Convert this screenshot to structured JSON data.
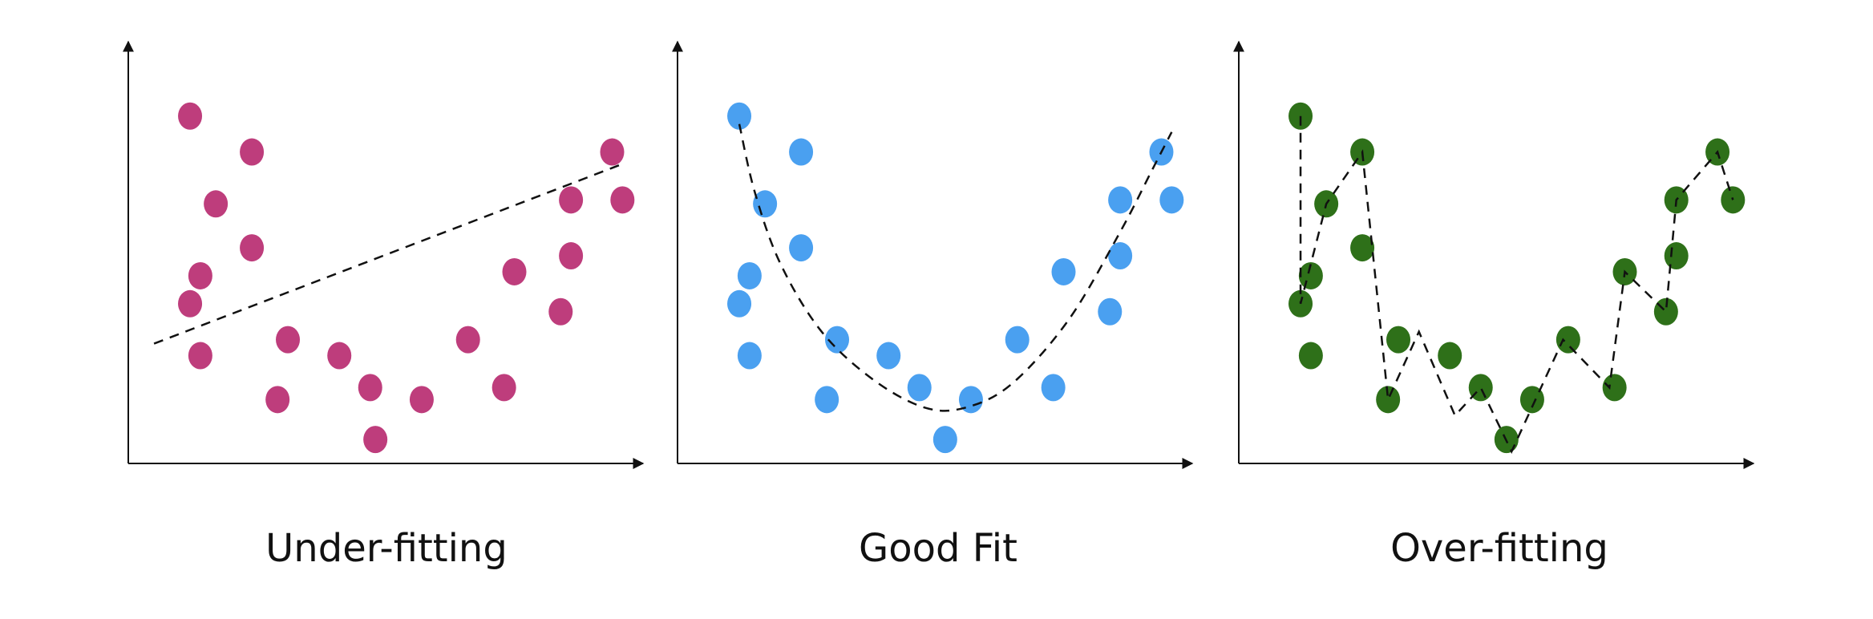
{
  "chart_data": [
    {
      "type": "scatter",
      "title": "Under-fitting",
      "point_color": "#be3d7c",
      "fit_line": {
        "style": "dashed",
        "kind": "linear",
        "color": "#111111"
      },
      "xlim": [
        0,
        10
      ],
      "ylim": [
        0,
        10
      ],
      "grid": false,
      "points": [
        {
          "x": 1.2,
          "y": 8.7
        },
        {
          "x": 2.4,
          "y": 7.8
        },
        {
          "x": 1.7,
          "y": 6.5
        },
        {
          "x": 2.4,
          "y": 5.4
        },
        {
          "x": 1.4,
          "y": 4.7
        },
        {
          "x": 1.2,
          "y": 4.0
        },
        {
          "x": 1.4,
          "y": 2.7
        },
        {
          "x": 3.1,
          "y": 3.1
        },
        {
          "x": 4.1,
          "y": 2.7
        },
        {
          "x": 2.9,
          "y": 1.6
        },
        {
          "x": 4.7,
          "y": 1.9
        },
        {
          "x": 5.7,
          "y": 1.6
        },
        {
          "x": 4.8,
          "y": 0.6
        },
        {
          "x": 6.6,
          "y": 3.1
        },
        {
          "x": 7.3,
          "y": 1.9
        },
        {
          "x": 7.5,
          "y": 4.8
        },
        {
          "x": 8.4,
          "y": 3.8
        },
        {
          "x": 8.6,
          "y": 5.2
        },
        {
          "x": 8.6,
          "y": 6.6
        },
        {
          "x": 9.4,
          "y": 7.8
        },
        {
          "x": 9.6,
          "y": 6.6
        }
      ],
      "line_points": [
        {
          "x": 0.5,
          "y": 3.0
        },
        {
          "x": 9.6,
          "y": 7.5
        }
      ]
    },
    {
      "type": "scatter",
      "title": "Good Fit",
      "point_color": "#4aa0f0",
      "fit_line": {
        "style": "dashed",
        "kind": "quadratic",
        "color": "#111111"
      },
      "xlim": [
        0,
        10
      ],
      "ylim": [
        0,
        10
      ],
      "grid": false,
      "points": [
        {
          "x": 1.2,
          "y": 8.7
        },
        {
          "x": 2.4,
          "y": 7.8
        },
        {
          "x": 1.7,
          "y": 6.5
        },
        {
          "x": 2.4,
          "y": 5.4
        },
        {
          "x": 1.4,
          "y": 4.7
        },
        {
          "x": 1.2,
          "y": 4.0
        },
        {
          "x": 1.4,
          "y": 2.7
        },
        {
          "x": 3.1,
          "y": 3.1
        },
        {
          "x": 4.1,
          "y": 2.7
        },
        {
          "x": 2.9,
          "y": 1.6
        },
        {
          "x": 4.7,
          "y": 1.9
        },
        {
          "x": 5.7,
          "y": 1.6
        },
        {
          "x": 5.2,
          "y": 0.6
        },
        {
          "x": 6.6,
          "y": 3.1
        },
        {
          "x": 7.3,
          "y": 1.9
        },
        {
          "x": 7.5,
          "y": 4.8
        },
        {
          "x": 8.4,
          "y": 3.8
        },
        {
          "x": 8.6,
          "y": 5.2
        },
        {
          "x": 8.6,
          "y": 6.6
        },
        {
          "x": 9.4,
          "y": 7.8
        },
        {
          "x": 9.6,
          "y": 6.6
        }
      ],
      "line_points": [
        {
          "x": 1.2,
          "y": 8.5
        },
        {
          "x": 1.5,
          "y": 6.8
        },
        {
          "x": 2.0,
          "y": 5.0
        },
        {
          "x": 2.8,
          "y": 3.3
        },
        {
          "x": 3.8,
          "y": 2.1
        },
        {
          "x": 4.8,
          "y": 1.4
        },
        {
          "x": 5.6,
          "y": 1.4
        },
        {
          "x": 6.5,
          "y": 2.0
        },
        {
          "x": 7.6,
          "y": 3.6
        },
        {
          "x": 8.6,
          "y": 5.8
        },
        {
          "x": 9.2,
          "y": 7.3
        },
        {
          "x": 9.6,
          "y": 8.3
        }
      ]
    },
    {
      "type": "scatter",
      "title": "Over-fitting",
      "point_color": "#2e7019",
      "fit_line": {
        "style": "dashed",
        "kind": "interpolating",
        "color": "#111111"
      },
      "xlim": [
        0,
        10
      ],
      "ylim": [
        0,
        10
      ],
      "grid": false,
      "points": [
        {
          "x": 1.2,
          "y": 8.7
        },
        {
          "x": 2.4,
          "y": 7.8
        },
        {
          "x": 1.7,
          "y": 6.5
        },
        {
          "x": 2.4,
          "y": 5.4
        },
        {
          "x": 1.4,
          "y": 4.7
        },
        {
          "x": 1.2,
          "y": 4.0
        },
        {
          "x": 1.4,
          "y": 2.7
        },
        {
          "x": 3.1,
          "y": 3.1
        },
        {
          "x": 4.1,
          "y": 2.7
        },
        {
          "x": 2.9,
          "y": 1.6
        },
        {
          "x": 4.7,
          "y": 1.9
        },
        {
          "x": 5.7,
          "y": 1.6
        },
        {
          "x": 5.2,
          "y": 0.6
        },
        {
          "x": 6.4,
          "y": 3.1
        },
        {
          "x": 7.3,
          "y": 1.9
        },
        {
          "x": 7.5,
          "y": 4.8
        },
        {
          "x": 8.3,
          "y": 3.8
        },
        {
          "x": 8.5,
          "y": 5.2
        },
        {
          "x": 8.5,
          "y": 6.6
        },
        {
          "x": 9.3,
          "y": 7.8
        },
        {
          "x": 9.6,
          "y": 6.6
        }
      ],
      "line_points": [
        {
          "x": 1.2,
          "y": 8.7
        },
        {
          "x": 1.2,
          "y": 4.0
        },
        {
          "x": 1.7,
          "y": 6.5
        },
        {
          "x": 2.4,
          "y": 7.8
        },
        {
          "x": 2.9,
          "y": 1.6
        },
        {
          "x": 3.5,
          "y": 3.3
        },
        {
          "x": 4.2,
          "y": 1.2
        },
        {
          "x": 4.7,
          "y": 1.9
        },
        {
          "x": 5.3,
          "y": 0.3
        },
        {
          "x": 6.3,
          "y": 3.1
        },
        {
          "x": 7.2,
          "y": 1.9
        },
        {
          "x": 7.5,
          "y": 4.8
        },
        {
          "x": 8.3,
          "y": 3.8
        },
        {
          "x": 8.5,
          "y": 6.6
        },
        {
          "x": 9.3,
          "y": 7.8
        },
        {
          "x": 9.6,
          "y": 6.6
        }
      ]
    }
  ]
}
